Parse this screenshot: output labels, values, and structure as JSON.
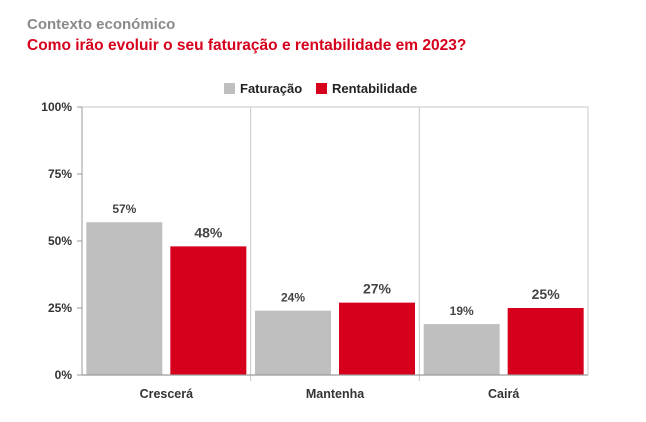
{
  "header": {
    "kicker": "Contexto económico",
    "title": "Como irão evoluir o seu faturação e rentabilidade em 2023?"
  },
  "chart_data": {
    "type": "bar",
    "categories": [
      "Crescerá",
      "Mantenha",
      "Cairá"
    ],
    "series": [
      {
        "name": "Faturação",
        "values": [
          57,
          24,
          19
        ],
        "labels": [
          "57%",
          "24%",
          "19%"
        ],
        "color": "#bfbfbf"
      },
      {
        "name": "Rentabilidade",
        "values": [
          48,
          27,
          25
        ],
        "labels": [
          "48%",
          "27%",
          "25%"
        ],
        "color": "#d6001c"
      }
    ],
    "ylim": [
      0,
      100
    ],
    "yticks": [
      0,
      25,
      50,
      75,
      100
    ],
    "ytick_labels": [
      "0%",
      "25%",
      "50%",
      "75%",
      "100%"
    ],
    "legend": "top-center",
    "grid": "vertical separators"
  }
}
